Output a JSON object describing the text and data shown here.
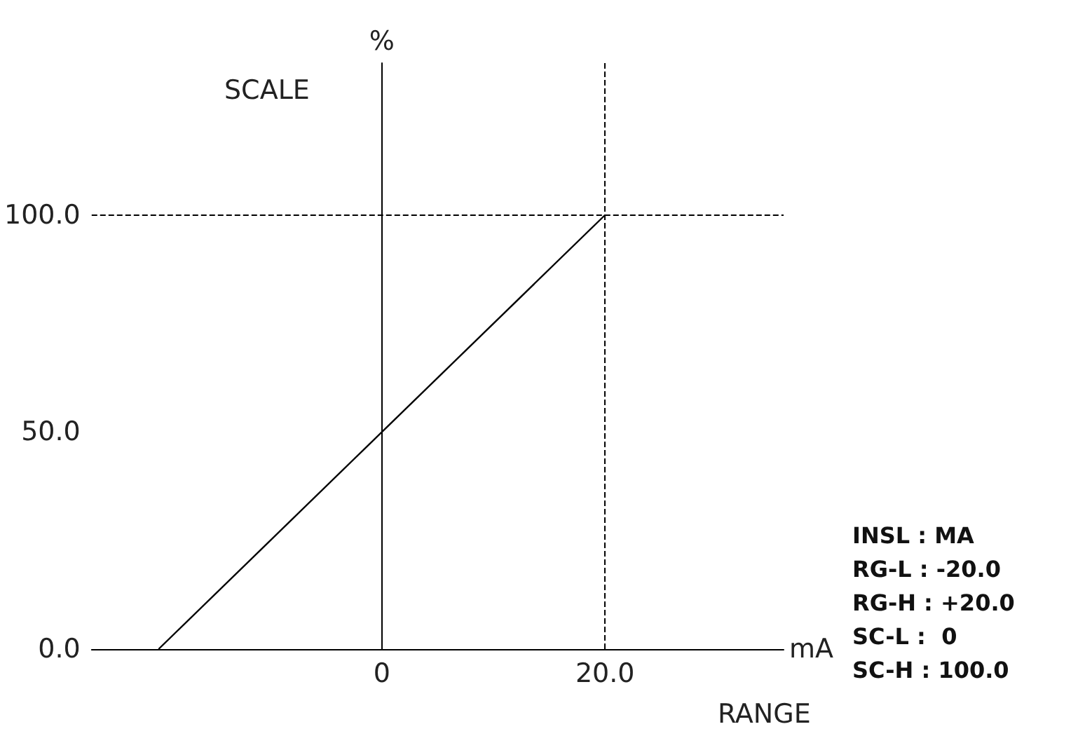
{
  "chart_data": {
    "type": "line",
    "xlabel": "mA",
    "ylabel": "%",
    "x": [
      -20,
      0,
      20
    ],
    "series": [
      {
        "color": "#000000",
        "values": [
          0,
          50,
          100
        ]
      }
    ],
    "xlim": [
      -26,
      36
    ],
    "xticks": [
      0,
      {
        "value": 20,
        "label": "20.0"
      }
    ],
    "ylim": [
      0,
      135
    ],
    "yticks": [
      {
        "value": 0,
        "label": "0.0"
      },
      {
        "value": 50,
        "label": "50.0"
      },
      {
        "value": 100,
        "label": "100.0"
      }
    ],
    "ref_lines": [
      {
        "axis": "x",
        "value": 20,
        "line_style": "dashed",
        "color": "#000000"
      },
      {
        "axis": "y",
        "value": 100,
        "line_style": "dashed",
        "color": "#000000"
      }
    ],
    "annotations": [
      "SCALE",
      "RANGE",
      "INSL : MA",
      "RG-L : -20.0",
      "RG-H : +20.0",
      "SC-L :  0",
      "SC-H : 100.0"
    ],
    "grid": false,
    "marker": "none",
    "line_style": "solid"
  }
}
